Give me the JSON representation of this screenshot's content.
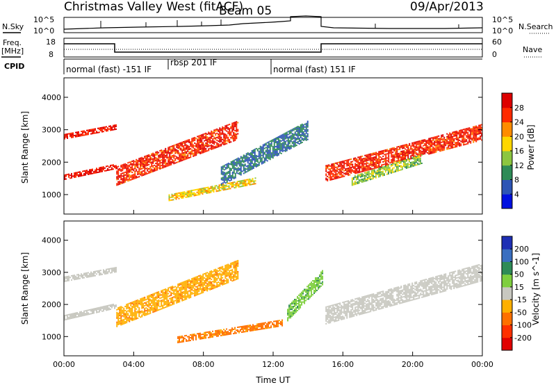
{
  "header": {
    "title": "Christmas Valley West (fitACF)",
    "beam": "Beam 05",
    "date": "09/Apr/2013"
  },
  "panels": {
    "nsky": {
      "label": "N.Sky",
      "left_ticks": [
        "10^5",
        "10^0"
      ],
      "right_ticks": [
        "10^5",
        "10^0"
      ],
      "right_label": "N.Search"
    },
    "freq": {
      "label_line1": "Freq.",
      "label_line2": "[MHz]",
      "left_ticks": [
        "18",
        "8"
      ],
      "right_ticks": [
        "60",
        "0"
      ],
      "right_label": "Nave"
    },
    "cpid": {
      "label": "CPID",
      "modes": [
        {
          "name": "normal (fast) -151 IF",
          "start_hour": 0
        },
        {
          "name": "rbsp 201 IF",
          "start_hour": 6
        },
        {
          "name": "normal (fast) 151 IF",
          "start_hour": 12.1
        }
      ]
    }
  },
  "chart_data": [
    {
      "type": "heatmap",
      "name": "power",
      "xlabel": "Time UT",
      "ylabel": "Slant Range [km]",
      "xlim": [
        0,
        24
      ],
      "x_ticks": [
        "00:00",
        "04:00",
        "08:00",
        "12:00",
        "16:00",
        "20:00",
        "00:00"
      ],
      "ylim": [
        400,
        4600
      ],
      "y_ticks": [
        1000,
        2000,
        3000,
        4000
      ],
      "colorbar": {
        "label": "Power [dB]",
        "ticks": [
          4,
          8,
          12,
          16,
          20,
          24,
          28
        ],
        "range": [
          0,
          32
        ],
        "colors": [
          "#0010e0",
          "#2d55b5",
          "#2e8b57",
          "#8cc63f",
          "#ffd700",
          "#ff8c00",
          "#ff2a00",
          "#dd0000"
        ]
      },
      "echo_bands": [
        {
          "start_hour": 0,
          "end_hour": 3,
          "range_km": [
            1450,
            1900
          ],
          "power_db": 29
        },
        {
          "start_hour": 0,
          "end_hour": 3,
          "range_km": [
            2700,
            3100
          ],
          "power_db": 28
        },
        {
          "start_hour": 3,
          "end_hour": 10,
          "range_km": [
            1300,
            3200
          ],
          "power_db": 27
        },
        {
          "start_hour": 6,
          "end_hour": 11,
          "range_km": [
            800,
            1500
          ],
          "power_db": 18
        },
        {
          "start_hour": 9,
          "end_hour": 14,
          "range_km": [
            1300,
            3200
          ],
          "power_db": 8
        },
        {
          "start_hour": 15,
          "end_hour": 24,
          "range_km": [
            1400,
            3100
          ],
          "power_db": 27
        },
        {
          "start_hour": 16.5,
          "end_hour": 20.5,
          "range_km": [
            1300,
            2200
          ],
          "power_db": 14
        }
      ]
    },
    {
      "type": "heatmap",
      "name": "velocity",
      "xlabel": "Time UT",
      "ylabel": "Slant Range [km]",
      "xlim": [
        0,
        24
      ],
      "x_ticks": [
        "00:00",
        "04:00",
        "08:00",
        "12:00",
        "16:00",
        "20:00",
        "00:00"
      ],
      "ylim": [
        400,
        4600
      ],
      "y_ticks": [
        1000,
        2000,
        3000,
        4000
      ],
      "colorbar": {
        "label": "Velocity [m s^-1]",
        "ticks": [
          200,
          100,
          50,
          15,
          -15,
          -50,
          -100,
          -200
        ],
        "colors": [
          "#1e2fb4",
          "#3a6fc0",
          "#2e8b57",
          "#7fcf3f",
          "#c8c8c0",
          "#ffb000",
          "#ff7000",
          "#ff3000",
          "#e00000"
        ]
      },
      "echo_bands": [
        {
          "start_hour": 0,
          "end_hour": 3,
          "range_km": [
            1500,
            2000
          ],
          "velocity": 0
        },
        {
          "start_hour": 0,
          "end_hour": 3,
          "range_km": [
            2700,
            3100
          ],
          "velocity": 0
        },
        {
          "start_hour": 3,
          "end_hour": 10,
          "range_km": [
            1300,
            3300
          ],
          "velocity": -40
        },
        {
          "start_hour": 6.5,
          "end_hour": 12.5,
          "range_km": [
            800,
            1500
          ],
          "velocity": -60
        },
        {
          "start_hour": 12.8,
          "end_hour": 14.8,
          "range_km": [
            1500,
            3000
          ],
          "velocity": 40
        },
        {
          "start_hour": 15,
          "end_hour": 24,
          "range_km": [
            1400,
            3200
          ],
          "velocity": 0
        }
      ]
    }
  ]
}
